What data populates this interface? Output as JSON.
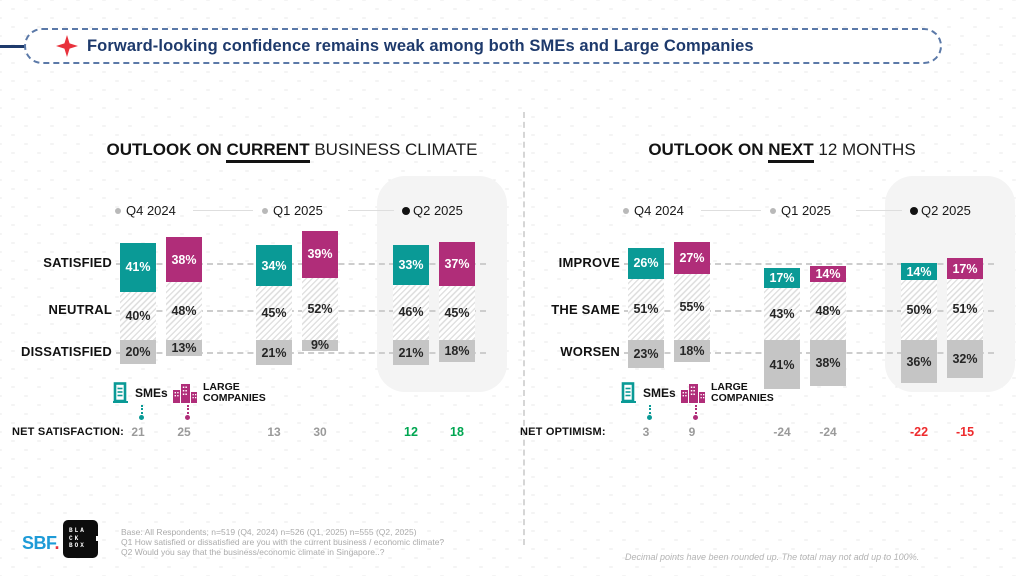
{
  "header": {
    "title": "Forward-looking confidence remains weak among both SMEs and Large Companies"
  },
  "charts_meta": [
    {
      "title_bold": "OUTLOOK ON",
      "title_underlined": "CURRENT",
      "title_rest": "BUSINESS CLIMATE"
    },
    {
      "title_bold": "OUTLOOK ON",
      "title_underlined": "NEXT",
      "title_rest": "12 MONTHS"
    }
  ],
  "legend": {
    "sme_label": "SMEs",
    "large_label_line1": "LARGE",
    "large_label_line2": "COMPANIES"
  },
  "chart_data": [
    {
      "type": "bar",
      "variant": "anchored-stacked-column-pairs",
      "title": "OUTLOOK ON CURRENT BUSINESS CLIMATE",
      "unit": "%",
      "categories": [
        "Q4 2024",
        "Q1 2025",
        "Q2 2025"
      ],
      "highlighted_category": "Q2 2025",
      "rows": [
        "SATISFIED",
        "NEUTRAL",
        "DISSATISFIED"
      ],
      "series": [
        {
          "name": "SMEs",
          "color": "#0a9a96",
          "values": [
            [
              41,
              40,
              20
            ],
            [
              34,
              45,
              21
            ],
            [
              33,
              46,
              21
            ]
          ]
        },
        {
          "name": "LARGE COMPANIES",
          "color": "#b02d79",
          "values": [
            [
              38,
              48,
              13
            ],
            [
              39,
              52,
              9
            ],
            [
              37,
              45,
              18
            ]
          ]
        }
      ],
      "net": {
        "label": "NET SATISFACTION:",
        "values": [
          21,
          25,
          13,
          30,
          12,
          18
        ],
        "highlight_start_index": 4,
        "highlight_color": "#00a651",
        "past_color": "#9a9a9a"
      }
    },
    {
      "type": "bar",
      "variant": "anchored-stacked-column-pairs",
      "title": "OUTLOOK ON NEXT 12 MONTHS",
      "unit": "%",
      "categories": [
        "Q4 2024",
        "Q1 2025",
        "Q2 2025"
      ],
      "highlighted_category": "Q2 2025",
      "rows": [
        "IMPROVE",
        "THE SAME",
        "WORSEN"
      ],
      "series": [
        {
          "name": "SMEs",
          "color": "#0a9a96",
          "values": [
            [
              26,
              51,
              23
            ],
            [
              17,
              43,
              41
            ],
            [
              14,
              50,
              36
            ]
          ]
        },
        {
          "name": "LARGE COMPANIES",
          "color": "#b02d79",
          "values": [
            [
              27,
              55,
              18
            ],
            [
              14,
              48,
              38
            ],
            [
              17,
              51,
              32
            ]
          ]
        }
      ],
      "net": {
        "label": "NET OPTIMISM:",
        "values": [
          3,
          9,
          -24,
          -24,
          -22,
          -15
        ],
        "highlight_start_index": 4,
        "highlight_color": "#ee2b2d",
        "past_color": "#9a9a9a"
      }
    }
  ],
  "footer": {
    "logo_sbf": "SBF",
    "logo_sbf_dot": ".",
    "logo_blackbox_lines": [
      "BLA",
      "CK",
      "BOX"
    ],
    "base_note_lines": [
      "Base: All Respondents; n=519 (Q4, 2024) n=526 (Q1, 2025) n=555 (Q2, 2025)",
      "Q1 How satisfied or dissatisfied are you with the current business / economic climate?",
      "Q2 Would you say that the business/economic climate in Singapore..?"
    ],
    "rounding_note": "Decimal points have been rounded up. The total may not add up to 100%."
  },
  "colors": {
    "teal": "#0a9a96",
    "magenta": "#b02d79",
    "gray_bar": "#c5c5c5",
    "green": "#00a651",
    "red": "#ee2b2d",
    "navy": "#1e3a6c"
  }
}
